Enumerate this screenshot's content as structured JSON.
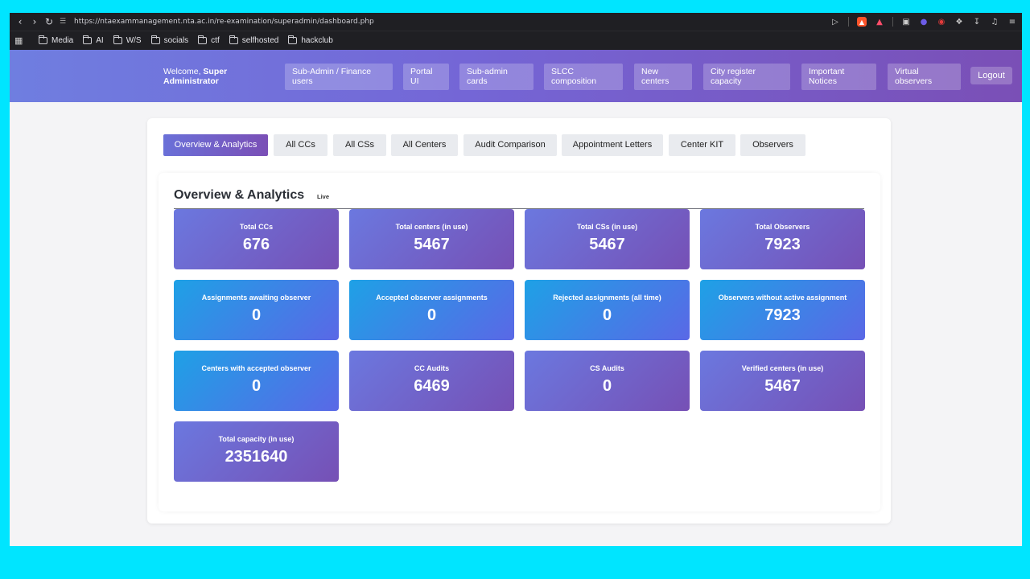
{
  "browser": {
    "url": "https://ntaexammanagement.nta.ac.in/re-examination/superadmin/dashboard.php",
    "bookmarks": [
      "Media",
      "AI",
      "W/S",
      "socials",
      "ctf",
      "selfhosted",
      "hackclub"
    ]
  },
  "header": {
    "welcome_prefix": "Welcome, ",
    "welcome_name_line1": "Super",
    "welcome_name_line2": "Administrator",
    "nav": [
      {
        "line1": "Sub-Admin / Finance",
        "line2": "users"
      },
      {
        "line1": "Portal",
        "line2": "UI"
      },
      {
        "line1": "Sub-admin",
        "line2": "cards"
      },
      {
        "line1": "SLCC",
        "line2": "composition"
      },
      {
        "line1": "New",
        "line2": "centers"
      },
      {
        "line1": "City register",
        "line2": "capacity"
      },
      {
        "line1": "Important",
        "line2": "Notices"
      },
      {
        "line1": "Virtual",
        "line2": "observers"
      }
    ],
    "logout": "Logout"
  },
  "tabs": [
    "Overview & Analytics",
    "All CCs",
    "All CSs",
    "All Centers",
    "Audit Comparison",
    "Appointment Letters",
    "Center KIT",
    "Observers"
  ],
  "overview": {
    "title": "Overview & Analytics",
    "live_badge": "Live",
    "stats": [
      {
        "label": "Total CCs",
        "value": "676"
      },
      {
        "label": "Total centers (in use)",
        "value": "5467"
      },
      {
        "label": "Total CSs (in use)",
        "value": "5467"
      },
      {
        "label": "Total Observers",
        "value": "7923"
      },
      {
        "label": "Assignments awaiting observer",
        "value": "0"
      },
      {
        "label": "Accepted observer assignments",
        "value": "0"
      },
      {
        "label": "Rejected assignments (all time)",
        "value": "0"
      },
      {
        "label": "Observers without active assignment",
        "value": "7923"
      },
      {
        "label": "Centers with accepted observer",
        "value": "0"
      },
      {
        "label": "CC Audits",
        "value": "6469"
      },
      {
        "label": "CS Audits",
        "value": "0"
      },
      {
        "label": "Verified centers (in use)",
        "value": "5467"
      },
      {
        "label": "Total capacity (in use)",
        "value": "2351640"
      }
    ]
  },
  "colors": {
    "page_bg": "#00e5ff",
    "header_gradient_start": "#6f7ee0",
    "header_gradient_end": "#7a4fb6",
    "card_purple_start": "#6b78df",
    "card_purple_end": "#7650b5",
    "card_blue_start": "#1ea1e6",
    "card_blue_end": "#5a68e6"
  },
  "icons": [
    "back-icon",
    "forward-icon",
    "reload-icon",
    "site-settings-icon",
    "play-icon",
    "brave-shield-icon",
    "brave-rewards-icon",
    "wallet-icon",
    "extension-icon",
    "puzzle-icon",
    "download-icon",
    "media-icon",
    "menu-icon",
    "apps-icon",
    "folder-icon"
  ]
}
